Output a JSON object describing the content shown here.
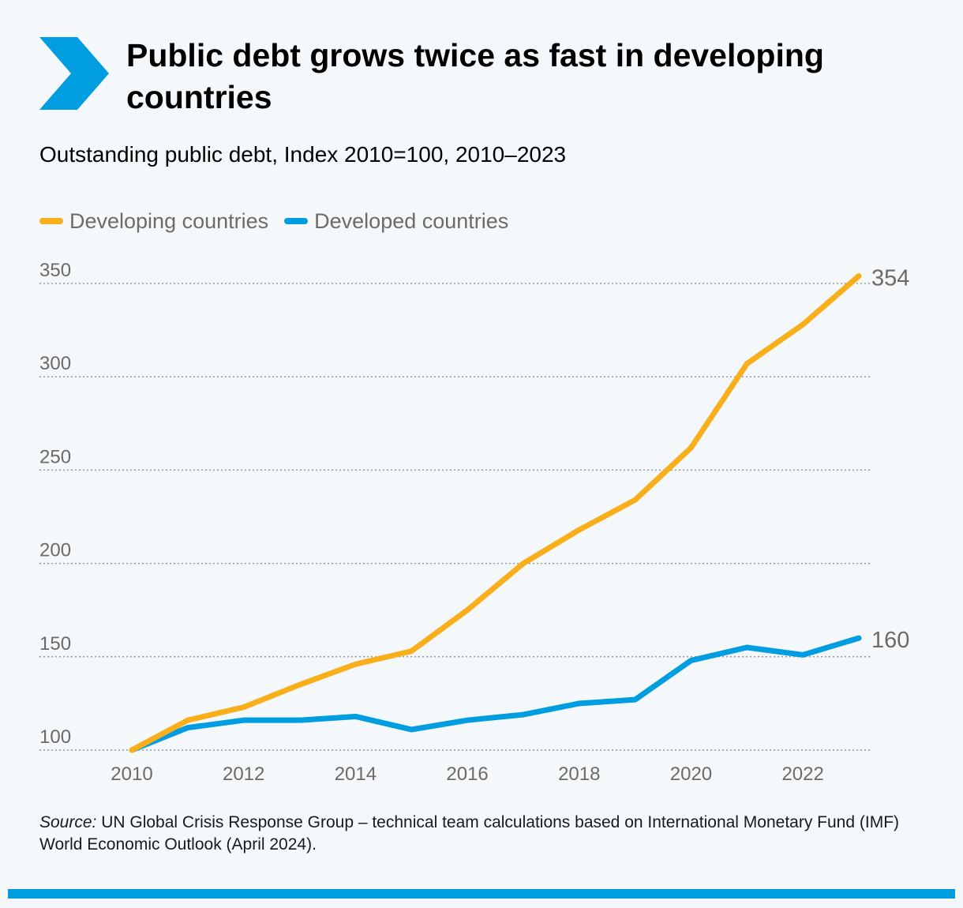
{
  "colors": {
    "accent": "#009ee0",
    "developing": "#f9ae1b",
    "developed": "#009ee0",
    "axis_text": "#6e6a66",
    "grid": "#9a9a9a"
  },
  "header": {
    "icon": "chevron-right-icon",
    "title": "Public debt grows twice as fast in developing countries",
    "subtitle": "Outstanding public debt, Index 2010=100, 2010–2023"
  },
  "legend": [
    {
      "label": "Developing countries",
      "color": "#f9ae1b"
    },
    {
      "label": "Developed countries",
      "color": "#009ee0"
    }
  ],
  "chart_data": {
    "type": "line",
    "title": "Public debt grows twice as fast in developing countries",
    "subtitle": "Outstanding public debt, Index 2010=100, 2010–2023",
    "x": [
      2010,
      2011,
      2012,
      2013,
      2014,
      2015,
      2016,
      2017,
      2018,
      2019,
      2020,
      2021,
      2022,
      2023
    ],
    "xticks": [
      "2010",
      "2012",
      "2014",
      "2016",
      "2018",
      "2020",
      "2022"
    ],
    "xlim": [
      2010,
      2023
    ],
    "yticks": [
      "100",
      "150",
      "200",
      "250",
      "300",
      "350"
    ],
    "ylim": [
      100,
      350
    ],
    "grid": true,
    "legend_position": "top-left",
    "series": [
      {
        "name": "Developing countries",
        "color": "#f9ae1b",
        "values": [
          100,
          116,
          123,
          135,
          146,
          153,
          175,
          200,
          218,
          234,
          262,
          307,
          328,
          354
        ],
        "end_label": "354"
      },
      {
        "name": "Developed countries",
        "color": "#009ee0",
        "values": [
          100,
          112,
          116,
          116,
          118,
          111,
          116,
          119,
          125,
          127,
          148,
          155,
          151,
          160
        ],
        "end_label": "160"
      }
    ]
  },
  "source": {
    "prefix": "Source:",
    "text": " UN Global Crisis Response Group – technical team calculations based on International Monetary Fund (IMF) World Economic Outlook (April 2024)."
  }
}
